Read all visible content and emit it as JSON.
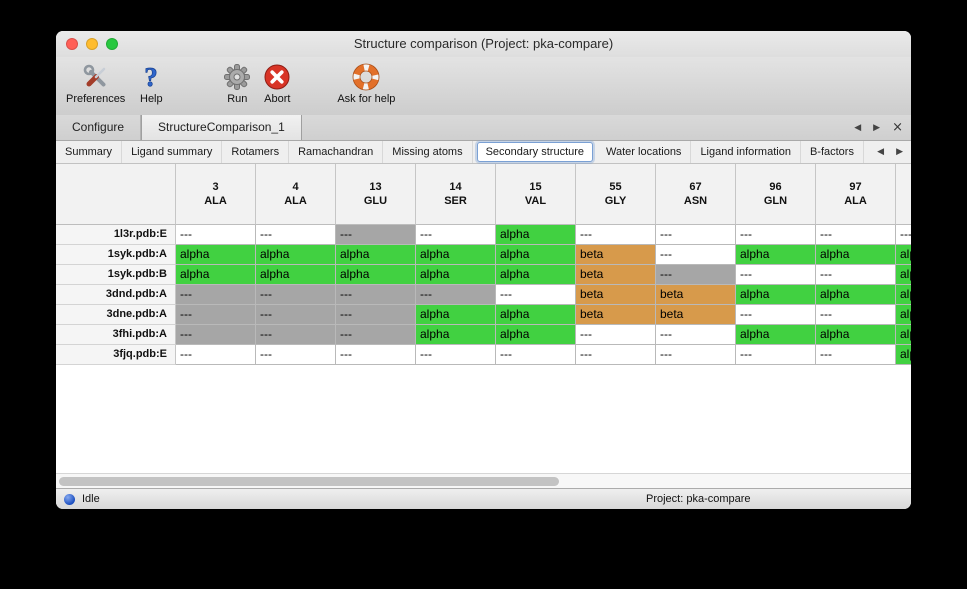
{
  "window": {
    "title": "Structure comparison (Project: pka-compare)"
  },
  "toolbar": {
    "items": [
      {
        "label": "Preferences",
        "icon": "tools-icon"
      },
      {
        "label": "Help",
        "icon": "question-icon"
      },
      {
        "label": "Run",
        "icon": "gear-icon"
      },
      {
        "label": "Abort",
        "icon": "abort-icon"
      },
      {
        "label": "Ask for help",
        "icon": "lifebuoy-icon"
      }
    ]
  },
  "doc_tabs": {
    "tabs": [
      {
        "label": "Configure",
        "selected": false
      },
      {
        "label": "StructureComparison_1",
        "selected": true
      }
    ],
    "nav_prev": "◀",
    "nav_next": "▶",
    "nav_close": "×"
  },
  "view_tabs": {
    "tabs": [
      "Summary",
      "Ligand summary",
      "Rotamers",
      "Ramachandran",
      "Missing atoms",
      "Secondary structure",
      "Water locations",
      "Ligand information",
      "B-factors"
    ],
    "selected": "Secondary structure",
    "nav_prev": "◀",
    "nav_next": "▶"
  },
  "table": {
    "columns": [
      {
        "num": "3",
        "res": "ALA"
      },
      {
        "num": "4",
        "res": "ALA"
      },
      {
        "num": "13",
        "res": "GLU"
      },
      {
        "num": "14",
        "res": "SER"
      },
      {
        "num": "15",
        "res": "VAL"
      },
      {
        "num": "55",
        "res": "GLY"
      },
      {
        "num": "67",
        "res": "ASN"
      },
      {
        "num": "96",
        "res": "GLN"
      },
      {
        "num": "97",
        "res": "ALA"
      },
      {
        "num": "",
        "res": ""
      }
    ],
    "rows": [
      {
        "name": "1l3r.pdb:E",
        "cells": [
          [
            "---",
            "white"
          ],
          [
            "---",
            "white"
          ],
          [
            "---",
            "gray"
          ],
          [
            "---",
            "white"
          ],
          [
            "alpha",
            "green"
          ],
          [
            "---",
            "white"
          ],
          [
            "---",
            "white"
          ],
          [
            "---",
            "white"
          ],
          [
            "---",
            "white"
          ],
          [
            "---",
            "white"
          ]
        ]
      },
      {
        "name": "1syk.pdb:A",
        "cells": [
          [
            "alpha",
            "green"
          ],
          [
            "alpha",
            "green"
          ],
          [
            "alpha",
            "green"
          ],
          [
            "alpha",
            "green"
          ],
          [
            "alpha",
            "green"
          ],
          [
            "beta",
            "orange"
          ],
          [
            "---",
            "white"
          ],
          [
            "alpha",
            "green"
          ],
          [
            "alpha",
            "green"
          ],
          [
            "alpha",
            "green"
          ]
        ]
      },
      {
        "name": "1syk.pdb:B",
        "cells": [
          [
            "alpha",
            "green"
          ],
          [
            "alpha",
            "green"
          ],
          [
            "alpha",
            "green"
          ],
          [
            "alpha",
            "green"
          ],
          [
            "alpha",
            "green"
          ],
          [
            "beta",
            "orange"
          ],
          [
            "---",
            "gray"
          ],
          [
            "---",
            "white"
          ],
          [
            "---",
            "white"
          ],
          [
            "alpha",
            "green"
          ]
        ]
      },
      {
        "name": "3dnd.pdb:A",
        "cells": [
          [
            "---",
            "gray"
          ],
          [
            "---",
            "gray"
          ],
          [
            "---",
            "gray"
          ],
          [
            "---",
            "gray"
          ],
          [
            "---",
            "white"
          ],
          [
            "beta",
            "orange"
          ],
          [
            "beta",
            "orange"
          ],
          [
            "alpha",
            "green"
          ],
          [
            "alpha",
            "green"
          ],
          [
            "alpha",
            "green"
          ]
        ]
      },
      {
        "name": "3dne.pdb:A",
        "cells": [
          [
            "---",
            "gray"
          ],
          [
            "---",
            "gray"
          ],
          [
            "---",
            "gray"
          ],
          [
            "alpha",
            "green"
          ],
          [
            "alpha",
            "green"
          ],
          [
            "beta",
            "orange"
          ],
          [
            "beta",
            "orange"
          ],
          [
            "---",
            "white"
          ],
          [
            "---",
            "white"
          ],
          [
            "alpha",
            "green"
          ]
        ]
      },
      {
        "name": "3fhi.pdb:A",
        "cells": [
          [
            "---",
            "gray"
          ],
          [
            "---",
            "gray"
          ],
          [
            "---",
            "gray"
          ],
          [
            "alpha",
            "green"
          ],
          [
            "alpha",
            "green"
          ],
          [
            "---",
            "white"
          ],
          [
            "---",
            "white"
          ],
          [
            "alpha",
            "green"
          ],
          [
            "alpha",
            "green"
          ],
          [
            "alpha",
            "green"
          ]
        ]
      },
      {
        "name": "3fjq.pdb:E",
        "cells": [
          [
            "---",
            "white"
          ],
          [
            "---",
            "white"
          ],
          [
            "---",
            "white"
          ],
          [
            "---",
            "white"
          ],
          [
            "---",
            "white"
          ],
          [
            "---",
            "white"
          ],
          [
            "---",
            "white"
          ],
          [
            "---",
            "white"
          ],
          [
            "---",
            "white"
          ],
          [
            "alpha",
            "green"
          ]
        ]
      }
    ]
  },
  "statusbar": {
    "status": "Idle",
    "project": "Project: pka-compare"
  },
  "colors": {
    "green": "#41d141",
    "orange": "#d79a4b",
    "gray": "#a6a6a6",
    "white": "#ffffff",
    "accent": "#7aa0d4",
    "traffic_red": "#ff5f57",
    "traffic_yellow": "#febc2e",
    "traffic_green": "#28c840"
  }
}
